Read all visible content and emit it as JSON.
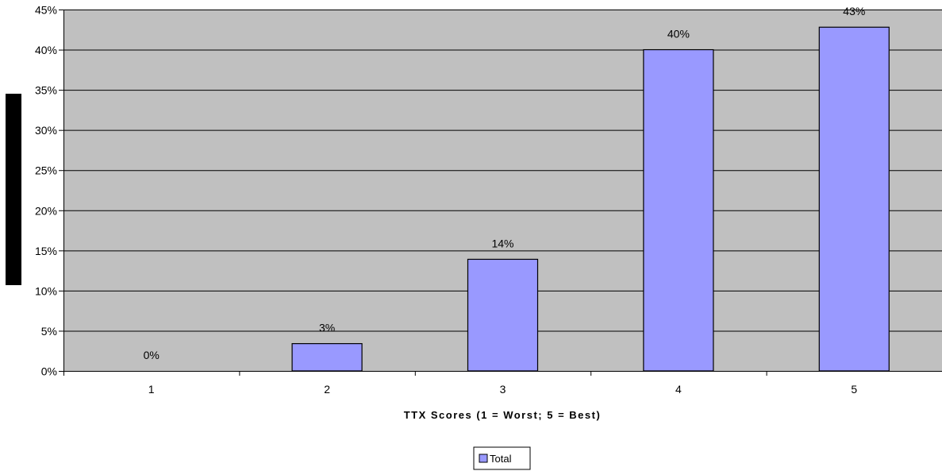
{
  "chart_data": {
    "type": "bar",
    "categories": [
      "1",
      "2",
      "3",
      "4",
      "5"
    ],
    "series": [
      {
        "name": "Total",
        "values": [
          0,
          3.4,
          13.9,
          40,
          42.8
        ],
        "labels": [
          "0%",
          "3%",
          "14%",
          "40%",
          "43%"
        ]
      }
    ],
    "xlabel": "TTX Scores (1 = Worst; 5 = Best)",
    "ylabel": "",
    "ylim": [
      0,
      45
    ],
    "yticks": [
      0,
      5,
      10,
      15,
      20,
      25,
      30,
      35,
      40,
      45
    ],
    "ytick_labels": [
      "0%",
      "5%",
      "10%",
      "15%",
      "20%",
      "25%",
      "30%",
      "35%",
      "40%",
      "45%"
    ],
    "grid": true,
    "legend": {
      "position": "bottom-center",
      "entries": [
        "Total"
      ]
    },
    "colors": {
      "plot_background": "#c0c0c0",
      "bar_fill": "#9999ff",
      "bar_stroke": "#000000",
      "gridline": "#000000",
      "redaction_bar": "#000000"
    }
  }
}
